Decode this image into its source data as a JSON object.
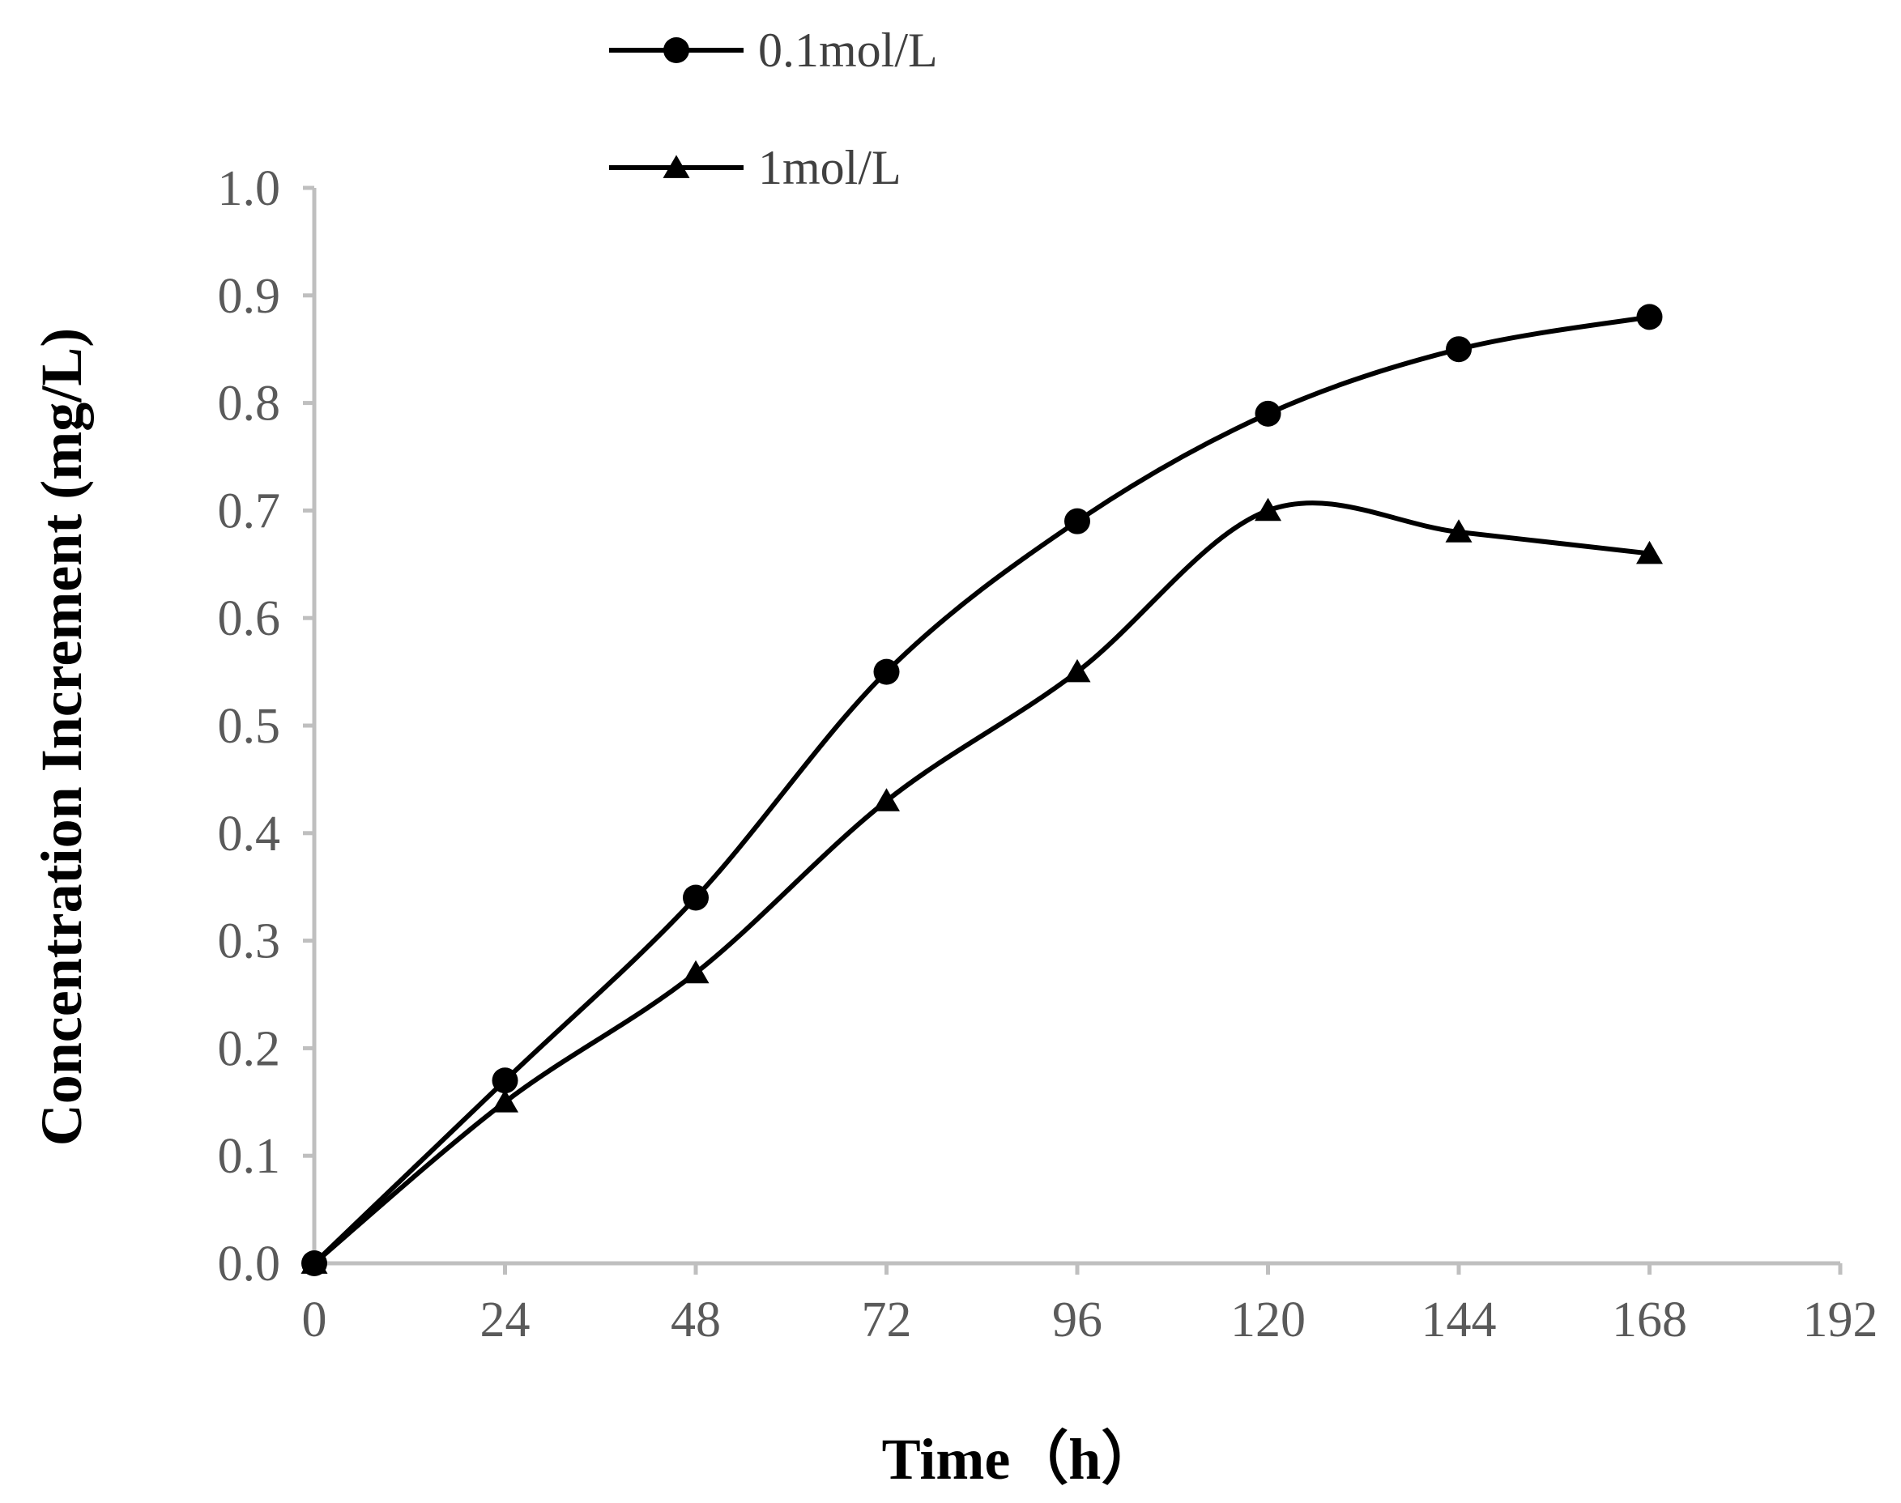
{
  "chart_data": {
    "type": "line",
    "title": "",
    "xlabel": "Time（h）",
    "ylabel": "Concentration Increment (mg/L)",
    "x": [
      0,
      24,
      48,
      72,
      96,
      120,
      144,
      168
    ],
    "xlim": [
      0,
      192
    ],
    "ylim": [
      0,
      1.0
    ],
    "x_ticks": [
      "0",
      "24",
      "48",
      "72",
      "96",
      "120",
      "144",
      "168",
      "192"
    ],
    "y_ticks": [
      "0.0",
      "0.1",
      "0.2",
      "0.3",
      "0.4",
      "0.5",
      "0.6",
      "0.7",
      "0.8",
      "0.9",
      "1.0"
    ],
    "grid": false,
    "legend_position": "top-left",
    "smooth": true,
    "series": [
      {
        "name": "0.1mol/L",
        "marker": "circle",
        "values": [
          0.0,
          0.17,
          0.34,
          0.55,
          0.69,
          0.79,
          0.85,
          0.88
        ]
      },
      {
        "name": "1mol/L",
        "marker": "triangle",
        "values": [
          0.0,
          0.15,
          0.27,
          0.43,
          0.55,
          0.7,
          0.68,
          0.66
        ]
      }
    ],
    "colors": {
      "axis": "#bfbfbf",
      "line": "#000000",
      "tick_text": "#5a5a5a"
    }
  }
}
